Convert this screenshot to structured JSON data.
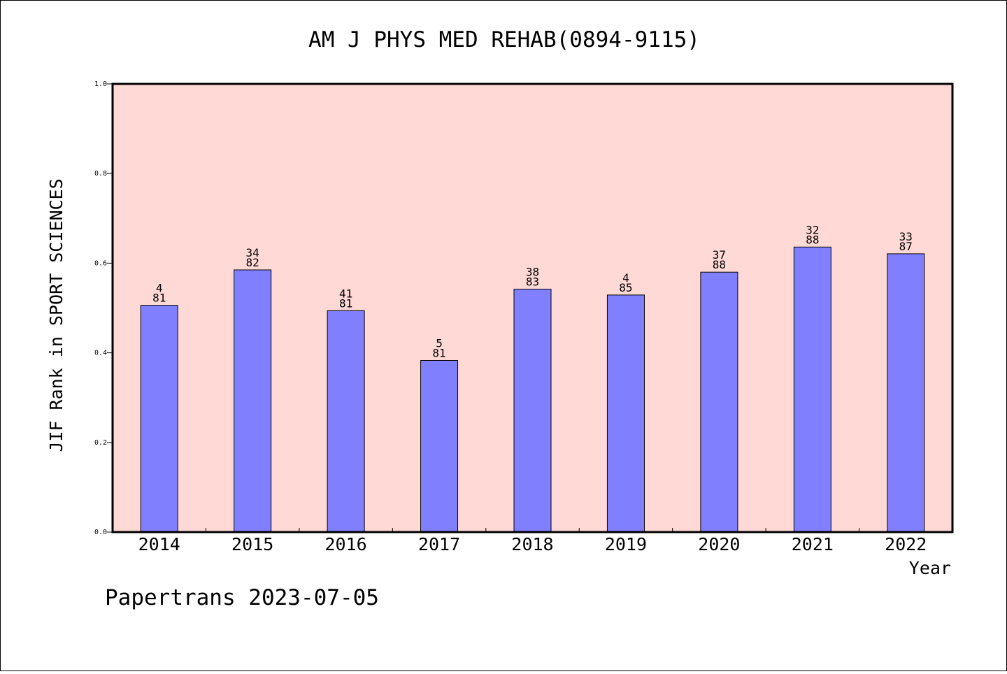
{
  "chart_data": {
    "type": "bar",
    "title": "AM J PHYS MED REHAB(0894-9115)",
    "xlabel": "Year",
    "ylabel": "JIF Rank in SPORT SCIENCES",
    "ylim": [
      0,
      1.0
    ],
    "yticks": [
      "0.0",
      "0.2",
      "0.4",
      "0.6",
      "0.8",
      "1.0"
    ],
    "categories": [
      "2014",
      "2015",
      "2016",
      "2017",
      "2018",
      "2019",
      "2020",
      "2021",
      "2022"
    ],
    "values": [
      0.506,
      0.585,
      0.494,
      0.383,
      0.542,
      0.529,
      0.58,
      0.636,
      0.621
    ],
    "bar_labels": [
      {
        "top": "4",
        "bottom": "81"
      },
      {
        "top": "34",
        "bottom": "82"
      },
      {
        "top": "41",
        "bottom": "81"
      },
      {
        "top": "5",
        "bottom": "81"
      },
      {
        "top": "38",
        "bottom": "83"
      },
      {
        "top": "4",
        "bottom": "85"
      },
      {
        "top": "37",
        "bottom": "88"
      },
      {
        "top": "32",
        "bottom": "88"
      },
      {
        "top": "33",
        "bottom": "87"
      }
    ],
    "grid": false,
    "colors": {
      "plot_background": "#ffd9d6",
      "bar_fill": "#8080ff",
      "bar_stroke": "#000000"
    }
  },
  "footer": {
    "credit": "Papertrans 2023-07-05"
  }
}
